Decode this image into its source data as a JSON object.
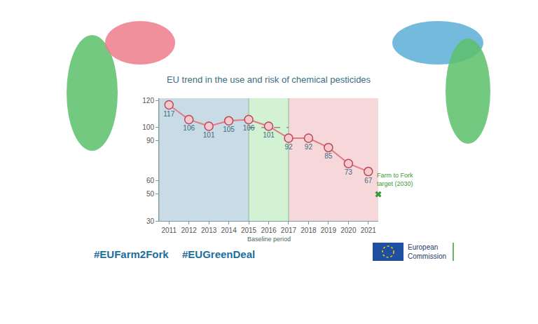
{
  "chart_data": {
    "type": "line",
    "title": "EU trend in the use and risk of chemical pesticides",
    "x": [
      2011,
      2012,
      2013,
      2014,
      2015,
      2016,
      2017,
      2018,
      2019,
      2020,
      2021
    ],
    "values": [
      117,
      106,
      101,
      105,
      106,
      101,
      92,
      92,
      85,
      73,
      67
    ],
    "color": "#e07a86",
    "marker": "circle",
    "data_labels": true,
    "xlim": [
      2010.5,
      2021.5
    ],
    "xticks": [
      2011,
      2012,
      2013,
      2014,
      2015,
      2016,
      2017,
      2018,
      2019,
      2020,
      2021
    ],
    "ylim": [
      30,
      122
    ],
    "yticks": [
      30,
      50,
      60,
      90,
      100,
      120
    ],
    "grid": false,
    "bands": [
      {
        "from": 2010.5,
        "to": 2015,
        "color": "#c9dbe5"
      },
      {
        "from": 2015,
        "to": 2017,
        "color": "#d3f1d3",
        "label": "Baseline period"
      },
      {
        "from": 2017,
        "to": 2021.5,
        "color": "#f6d7da"
      }
    ],
    "baseline": {
      "value": 100,
      "from": 2015,
      "to": 2017
    },
    "target": {
      "label": "Farm to Fork target (2030)",
      "value": 50,
      "marker": "x",
      "color": "#3a9a3a"
    },
    "hashtags": [
      "#EUFarm2Fork",
      "#EUGreenDeal"
    ],
    "logo_text": "European Commission"
  }
}
